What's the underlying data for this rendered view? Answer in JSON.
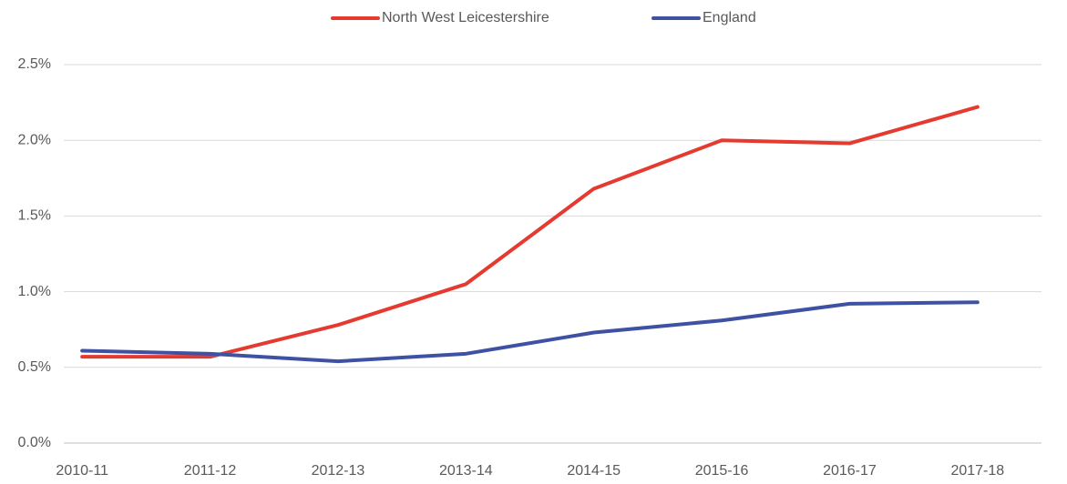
{
  "chart_data": {
    "type": "line",
    "categories": [
      "2010-11",
      "2011-12",
      "2012-13",
      "2013-14",
      "2014-15",
      "2015-16",
      "2016-17",
      "2017-18"
    ],
    "series": [
      {
        "name": "North West Leicestershire",
        "color": "#e53a2f",
        "values": [
          0.57,
          0.57,
          0.78,
          1.05,
          1.68,
          2.0,
          1.98,
          2.22
        ]
      },
      {
        "name": "England",
        "color": "#3f51a3",
        "values": [
          0.61,
          0.59,
          0.54,
          0.59,
          0.73,
          0.81,
          0.92,
          0.93
        ]
      }
    ],
    "ylim": [
      0,
      2.5
    ],
    "yticks": [
      {
        "value": 0,
        "label": "0.0%"
      },
      {
        "value": 0.5,
        "label": "0.5%"
      },
      {
        "value": 1.0,
        "label": "1.0%"
      },
      {
        "value": 1.5,
        "label": "1.5%"
      },
      {
        "value": 2.0,
        "label": "2.0%"
      },
      {
        "value": 2.5,
        "label": "2.5%"
      }
    ],
    "grid": true,
    "legend": "top"
  }
}
